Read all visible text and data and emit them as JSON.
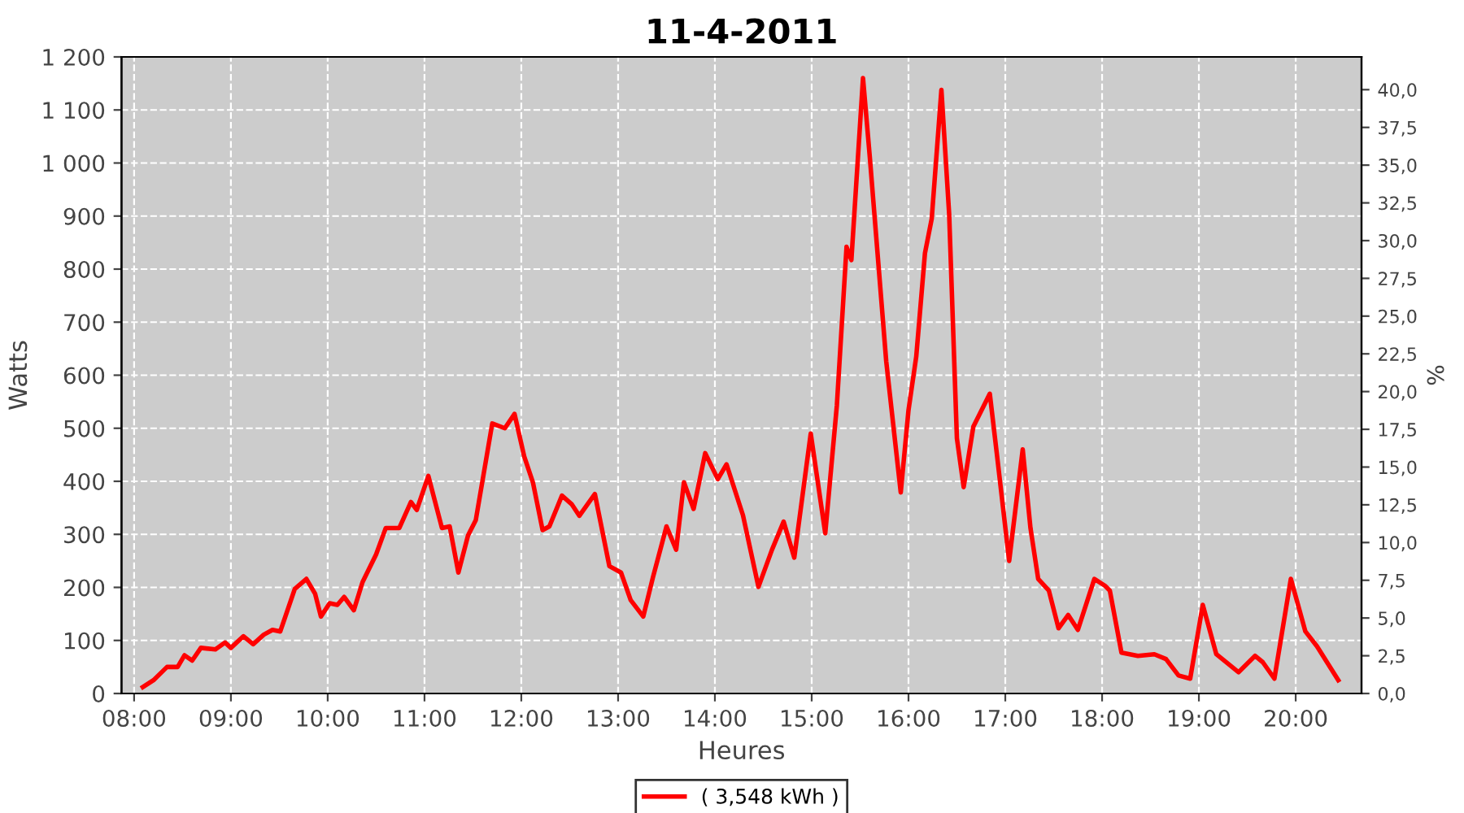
{
  "chart_data": {
    "type": "line",
    "title": "11-4-2011",
    "xlabel": "Heures",
    "ylabel": "Watts",
    "y2label": "%",
    "xlim": [
      7.87,
      20.68
    ],
    "ylim": [
      0,
      1200
    ],
    "y2lim": [
      0,
      42.17
    ],
    "xticks": [
      {
        "value": 8,
        "label": "08:00"
      },
      {
        "value": 9,
        "label": "09:00"
      },
      {
        "value": 10,
        "label": "10:00"
      },
      {
        "value": 11,
        "label": "11:00"
      },
      {
        "value": 12,
        "label": "12:00"
      },
      {
        "value": 13,
        "label": "13:00"
      },
      {
        "value": 14,
        "label": "14:00"
      },
      {
        "value": 15,
        "label": "15:00"
      },
      {
        "value": 16,
        "label": "16:00"
      },
      {
        "value": 17,
        "label": "17:00"
      },
      {
        "value": 18,
        "label": "18:00"
      },
      {
        "value": 19,
        "label": "19:00"
      },
      {
        "value": 20,
        "label": "20:00"
      }
    ],
    "yticks": [
      0,
      100,
      200,
      300,
      400,
      500,
      600,
      700,
      800,
      900,
      {
        "value": 1000,
        "label": "1 000"
      },
      {
        "value": 1100,
        "label": "1 100"
      },
      {
        "value": 1200,
        "label": "1 200"
      }
    ],
    "y2ticks": [
      {
        "value": 0,
        "label": "0,0"
      },
      {
        "value": 2.5,
        "label": "2,5"
      },
      {
        "value": 5,
        "label": "5,0"
      },
      {
        "value": 7.5,
        "label": "7,5"
      },
      {
        "value": 10,
        "label": "10,0"
      },
      {
        "value": 12.5,
        "label": "12,5"
      },
      {
        "value": 15,
        "label": "15,0"
      },
      {
        "value": 17.5,
        "label": "17,5"
      },
      {
        "value": 20,
        "label": "20,0"
      },
      {
        "value": 22.5,
        "label": "22,5"
      },
      {
        "value": 25,
        "label": "25,0"
      },
      {
        "value": 27.5,
        "label": "27,5"
      },
      {
        "value": 30,
        "label": "30,0"
      },
      {
        "value": 32.5,
        "label": "32,5"
      },
      {
        "value": 35,
        "label": "35,0"
      },
      {
        "value": 37.5,
        "label": "37,5"
      },
      {
        "value": 40,
        "label": "40,0"
      }
    ],
    "grid": true,
    "legend": "bottom",
    "marker": "none",
    "line_style": "solid",
    "series": [
      {
        "name": "( 3,548 kWh )",
        "color": "#ff0000",
        "x": [
          8.09,
          8.2,
          8.34,
          8.45,
          8.52,
          8.6,
          8.69,
          8.84,
          8.94,
          9.0,
          9.13,
          9.23,
          9.34,
          9.43,
          9.51,
          9.66,
          9.78,
          9.87,
          9.93,
          10.02,
          10.1,
          10.17,
          10.27,
          10.36,
          10.5,
          10.6,
          10.74,
          10.86,
          10.92,
          11.04,
          11.18,
          11.26,
          11.35,
          11.45,
          11.53,
          11.7,
          11.83,
          11.93,
          12.03,
          12.12,
          12.22,
          12.29,
          12.42,
          12.52,
          12.6,
          12.76,
          12.91,
          13.03,
          13.13,
          13.26,
          13.36,
          13.5,
          13.6,
          13.68,
          13.78,
          13.9,
          14.03,
          14.12,
          14.29,
          14.45,
          14.59,
          14.71,
          14.82,
          14.99,
          15.14,
          15.26,
          15.36,
          15.41,
          15.53,
          15.6,
          15.77,
          15.92,
          16.0,
          16.08,
          16.17,
          16.24,
          16.34,
          16.42,
          16.5,
          16.57,
          16.67,
          16.84,
          16.91,
          17.04,
          17.18,
          17.26,
          17.34,
          17.45,
          17.55,
          17.65,
          17.75,
          17.92,
          18.03,
          18.08,
          18.2,
          18.37,
          18.54,
          18.66,
          18.79,
          18.91,
          19.04,
          19.18,
          19.41,
          19.58,
          19.66,
          19.78,
          19.95,
          20.1,
          20.22,
          20.44
        ],
        "values": [
          12,
          25,
          50,
          50,
          72,
          62,
          86,
          83,
          96,
          86,
          108,
          93,
          111,
          120,
          117,
          197,
          216,
          188,
          145,
          170,
          167,
          182,
          157,
          210,
          262,
          312,
          312,
          361,
          346,
          410,
          312,
          315,
          228,
          298,
          327,
          509,
          500,
          527,
          447,
          398,
          308,
          315,
          373,
          357,
          335,
          376,
          240,
          228,
          176,
          145,
          219,
          315,
          271,
          398,
          348,
          453,
          404,
          432,
          336,
          201,
          271,
          324,
          256,
          490,
          302,
          543,
          842,
          817,
          1160,
          1012,
          626,
          379,
          534,
          635,
          830,
          895,
          1138,
          904,
          481,
          389,
          503,
          565,
          456,
          250,
          460,
          312,
          216,
          194,
          123,
          148,
          120,
          216,
          203,
          194,
          77,
          71,
          74,
          65,
          34,
          28,
          167,
          74,
          40,
          71,
          59,
          28,
          216,
          117,
          89,
          25
        ]
      }
    ]
  }
}
